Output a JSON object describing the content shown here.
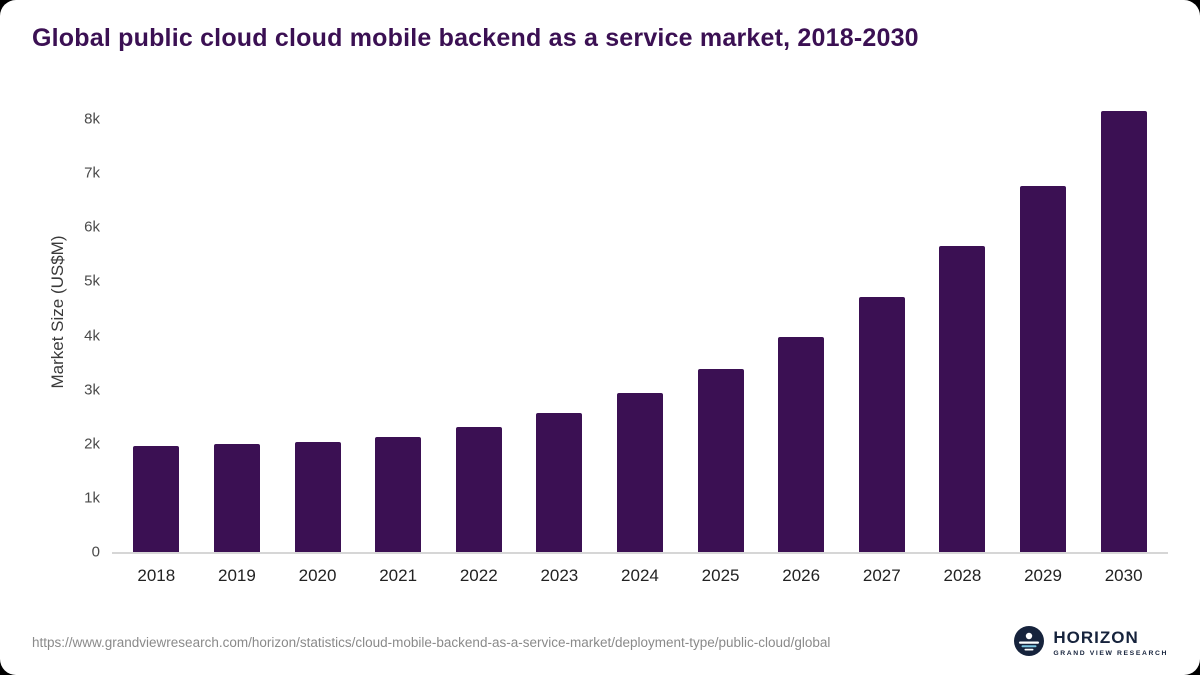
{
  "header": {
    "title": "Global public cloud cloud mobile backend as a service market, 2018-2030"
  },
  "chart_data": {
    "type": "bar",
    "title": "Global public cloud cloud mobile backend as a service market, 2018-2030",
    "xlabel": "",
    "ylabel": "Market Size (US$M)",
    "categories": [
      "2018",
      "2019",
      "2020",
      "2021",
      "2022",
      "2023",
      "2024",
      "2025",
      "2026",
      "2027",
      "2028",
      "2029",
      "2030"
    ],
    "values": [
      1950,
      2000,
      2040,
      2120,
      2310,
      2570,
      2930,
      3380,
      3980,
      4720,
      5650,
      6770,
      8150
    ],
    "ylim": [
      0,
      8500
    ],
    "yticks": [
      0,
      1000,
      2000,
      3000,
      4000,
      5000,
      6000,
      7000,
      8000
    ],
    "ytick_labels": [
      "0",
      "1k",
      "2k",
      "3k",
      "4k",
      "5k",
      "6k",
      "7k",
      "8k"
    ],
    "grid": false,
    "legend": "none",
    "bar_color": "#3b1053"
  },
  "footer": {
    "source_url": "https://www.grandviewresearch.com/horizon/statistics/cloud-mobile-backend-as-a-service-market/deployment-type/public-cloud/global",
    "logo": {
      "title": "HORIZON",
      "subtitle": "GRAND VIEW RESEARCH",
      "icon": "horizon-globe-icon",
      "color": "#16233c"
    }
  }
}
